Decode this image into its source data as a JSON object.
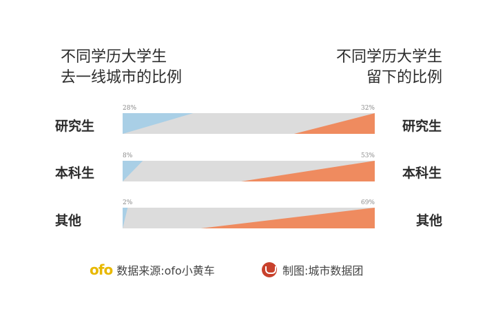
{
  "titles": {
    "left_line1": "不同学历大学生",
    "left_line2": "去一线城市的比例",
    "right_line1": "不同学历大学生",
    "right_line2": "留下的比例"
  },
  "chart_data": {
    "type": "bar",
    "categories": [
      "研究生",
      "本科生",
      "其他"
    ],
    "series": [
      {
        "name": "去一线城市的比例",
        "values": [
          28,
          8,
          2
        ],
        "color": "#a9cfe6"
      },
      {
        "name": "留下的比例",
        "values": [
          32,
          53,
          69
        ],
        "color": "#ef8b5f"
      }
    ],
    "value_labels_left": [
      "28%",
      "8%",
      "2%"
    ],
    "value_labels_right": [
      "32%",
      "53%",
      "69%"
    ],
    "track_color": "#dcdcdc",
    "xlim": [
      0,
      100
    ]
  },
  "footer": {
    "ofo_logo": "ofo",
    "source": "数据来源:ofo小黄车",
    "credit": "制图:城市数据团"
  }
}
